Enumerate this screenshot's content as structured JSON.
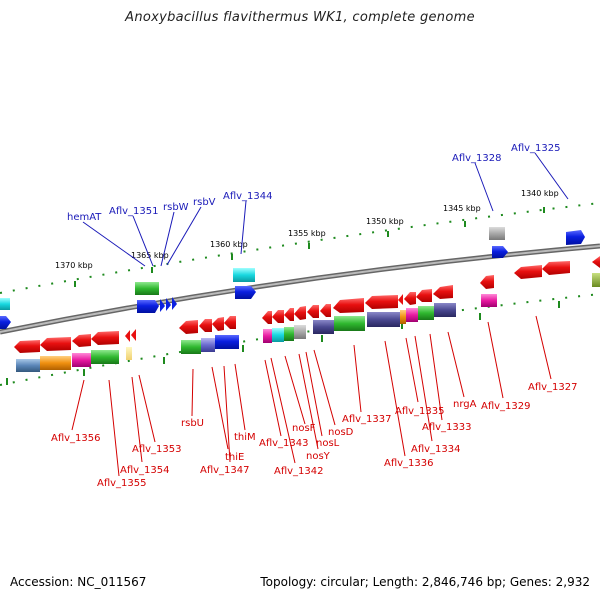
{
  "title": "Anoxybacillus flavithermus WK1, complete genome",
  "footer": {
    "accession": "Accession: NC_011567",
    "topology": "Topology: circular; Length: 2,846,746 bp; Genes: 2,932"
  },
  "kbp_ticks": [
    "1370 kbp",
    "1365 kbp",
    "1360 kbp",
    "1355 kbp",
    "1350 kbp",
    "1345 kbp",
    "1340 kbp"
  ],
  "labels_top": [
    "hemAT",
    "Aflv_1351",
    "rsbW",
    "rsbV",
    "Aflv_1344",
    "Aflv_1328",
    "Aflv_1325"
  ],
  "labels_bottom": [
    "Aflv_1356",
    "Aflv_1355",
    "Aflv_1354",
    "Aflv_1353",
    "rsbU",
    "thiE",
    "Aflv_1347",
    "thiM",
    "Aflv_1343",
    "Aflv_1342",
    "nosF",
    "nosY",
    "nosL",
    "nosD",
    "Aflv_1337",
    "Aflv_1336",
    "Aflv_1335",
    "Aflv_1334",
    "Aflv_1333",
    "nrgA",
    "Aflv_1329",
    "Aflv_1327"
  ],
  "colors": {
    "forward_label": "#1a1ab8",
    "reverse_label": "#d40000",
    "gene_red": "#e81010",
    "gene_blue": "#0a1fe0",
    "backbone": "#888888"
  }
}
